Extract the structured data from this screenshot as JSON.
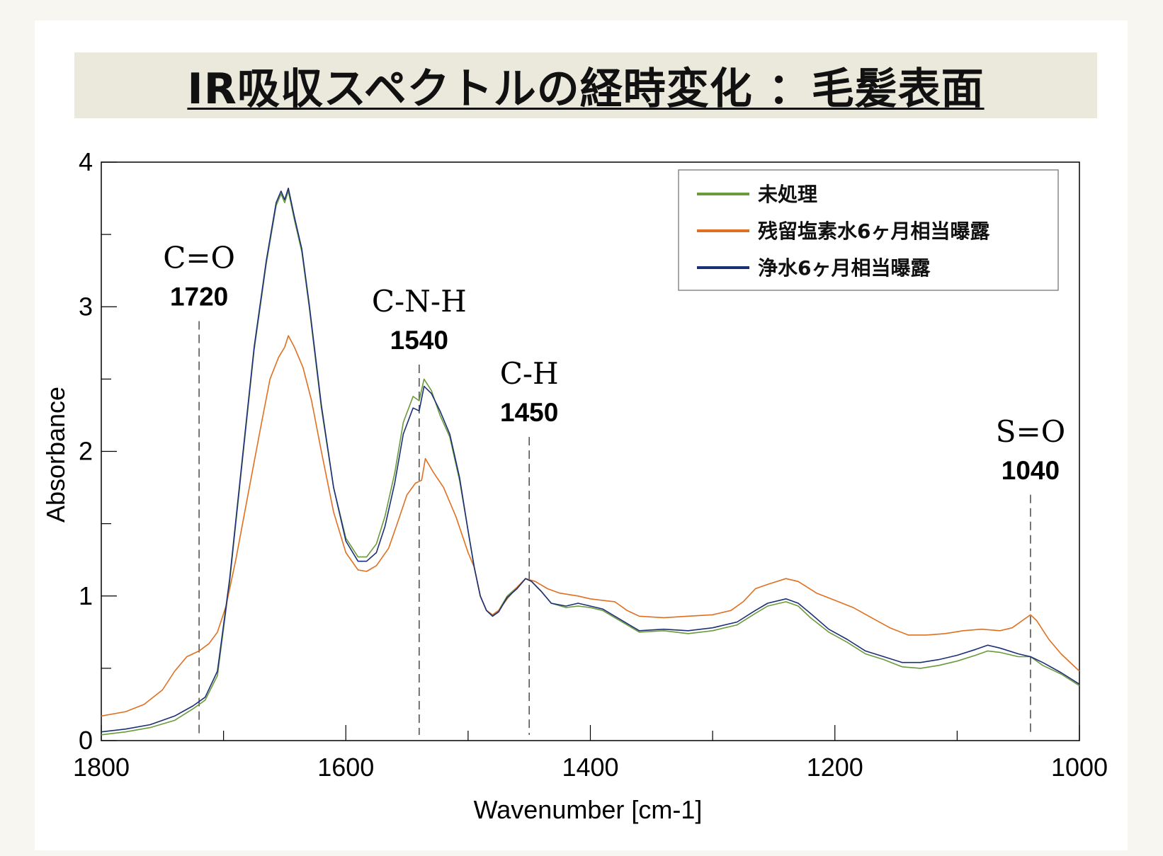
{
  "title": "IR吸収スペクトルの経時変化 ：毛髪表面",
  "chart_data": {
    "type": "line",
    "xlabel": "Wavenumber [cm-1]",
    "ylabel": "Absorbance",
    "xlim": [
      1800,
      1000
    ],
    "ylim": [
      0,
      4
    ],
    "x_ticks": [
      1800,
      1600,
      1400,
      1200,
      1000
    ],
    "y_ticks": [
      0,
      1,
      2,
      3,
      4
    ],
    "legend": {
      "position": "top-right",
      "entries": [
        "未処理",
        "残留塩素水6ヶ月相当曝露",
        "浄水6ヶ月相当曝露"
      ]
    },
    "series": [
      {
        "name": "未処理",
        "color": "#6a9a3a",
        "points": [
          [
            1800,
            0.04
          ],
          [
            1780,
            0.06
          ],
          [
            1760,
            0.09
          ],
          [
            1740,
            0.14
          ],
          [
            1725,
            0.22
          ],
          [
            1715,
            0.28
          ],
          [
            1705,
            0.45
          ],
          [
            1695,
            1.1
          ],
          [
            1685,
            1.9
          ],
          [
            1675,
            2.7
          ],
          [
            1665,
            3.3
          ],
          [
            1657,
            3.7
          ],
          [
            1653,
            3.78
          ],
          [
            1650,
            3.72
          ],
          [
            1647,
            3.8
          ],
          [
            1642,
            3.6
          ],
          [
            1636,
            3.38
          ],
          [
            1630,
            3.0
          ],
          [
            1620,
            2.3
          ],
          [
            1610,
            1.75
          ],
          [
            1600,
            1.4
          ],
          [
            1590,
            1.27
          ],
          [
            1583,
            1.27
          ],
          [
            1575,
            1.36
          ],
          [
            1568,
            1.55
          ],
          [
            1560,
            1.85
          ],
          [
            1553,
            2.2
          ],
          [
            1545,
            2.38
          ],
          [
            1540,
            2.35
          ],
          [
            1536,
            2.5
          ],
          [
            1530,
            2.42
          ],
          [
            1523,
            2.25
          ],
          [
            1515,
            2.1
          ],
          [
            1507,
            1.8
          ],
          [
            1500,
            1.45
          ],
          [
            1495,
            1.2
          ],
          [
            1490,
            1.0
          ],
          [
            1485,
            0.9
          ],
          [
            1480,
            0.86
          ],
          [
            1475,
            0.9
          ],
          [
            1468,
            1.0
          ],
          [
            1460,
            1.06
          ],
          [
            1453,
            1.12
          ],
          [
            1448,
            1.1
          ],
          [
            1440,
            1.03
          ],
          [
            1432,
            0.95
          ],
          [
            1420,
            0.92
          ],
          [
            1410,
            0.93
          ],
          [
            1400,
            0.92
          ],
          [
            1390,
            0.9
          ],
          [
            1380,
            0.85
          ],
          [
            1370,
            0.8
          ],
          [
            1360,
            0.75
          ],
          [
            1340,
            0.76
          ],
          [
            1320,
            0.74
          ],
          [
            1300,
            0.76
          ],
          [
            1280,
            0.8
          ],
          [
            1265,
            0.88
          ],
          [
            1255,
            0.93
          ],
          [
            1240,
            0.96
          ],
          [
            1230,
            0.93
          ],
          [
            1220,
            0.85
          ],
          [
            1205,
            0.75
          ],
          [
            1190,
            0.68
          ],
          [
            1175,
            0.6
          ],
          [
            1160,
            0.56
          ],
          [
            1145,
            0.51
          ],
          [
            1130,
            0.5
          ],
          [
            1115,
            0.52
          ],
          [
            1100,
            0.55
          ],
          [
            1085,
            0.59
          ],
          [
            1075,
            0.62
          ],
          [
            1065,
            0.61
          ],
          [
            1050,
            0.58
          ],
          [
            1040,
            0.58
          ],
          [
            1030,
            0.52
          ],
          [
            1015,
            0.46
          ],
          [
            1000,
            0.38
          ]
        ]
      },
      {
        "name": "残留塩素水6ヶ月相当曝露",
        "color": "#e07020",
        "points": [
          [
            1800,
            0.17
          ],
          [
            1780,
            0.2
          ],
          [
            1765,
            0.25
          ],
          [
            1750,
            0.35
          ],
          [
            1740,
            0.48
          ],
          [
            1730,
            0.58
          ],
          [
            1720,
            0.62
          ],
          [
            1712,
            0.67
          ],
          [
            1705,
            0.75
          ],
          [
            1698,
            0.93
          ],
          [
            1690,
            1.25
          ],
          [
            1680,
            1.7
          ],
          [
            1670,
            2.15
          ],
          [
            1662,
            2.5
          ],
          [
            1655,
            2.65
          ],
          [
            1650,
            2.72
          ],
          [
            1647,
            2.8
          ],
          [
            1642,
            2.72
          ],
          [
            1635,
            2.58
          ],
          [
            1628,
            2.35
          ],
          [
            1620,
            2.0
          ],
          [
            1610,
            1.58
          ],
          [
            1600,
            1.3
          ],
          [
            1590,
            1.18
          ],
          [
            1583,
            1.17
          ],
          [
            1575,
            1.21
          ],
          [
            1565,
            1.33
          ],
          [
            1558,
            1.5
          ],
          [
            1550,
            1.7
          ],
          [
            1543,
            1.78
          ],
          [
            1538,
            1.8
          ],
          [
            1535,
            1.95
          ],
          [
            1528,
            1.85
          ],
          [
            1520,
            1.75
          ],
          [
            1510,
            1.55
          ],
          [
            1500,
            1.3
          ],
          [
            1495,
            1.2
          ],
          [
            1490,
            1.0
          ],
          [
            1485,
            0.9
          ],
          [
            1480,
            0.87
          ],
          [
            1475,
            0.9
          ],
          [
            1468,
            0.98
          ],
          [
            1460,
            1.06
          ],
          [
            1453,
            1.12
          ],
          [
            1445,
            1.1
          ],
          [
            1435,
            1.05
          ],
          [
            1425,
            1.02
          ],
          [
            1410,
            1.0
          ],
          [
            1400,
            0.98
          ],
          [
            1390,
            0.97
          ],
          [
            1380,
            0.96
          ],
          [
            1370,
            0.9
          ],
          [
            1360,
            0.86
          ],
          [
            1340,
            0.85
          ],
          [
            1320,
            0.86
          ],
          [
            1300,
            0.87
          ],
          [
            1285,
            0.9
          ],
          [
            1275,
            0.96
          ],
          [
            1265,
            1.05
          ],
          [
            1255,
            1.08
          ],
          [
            1240,
            1.12
          ],
          [
            1230,
            1.1
          ],
          [
            1215,
            1.02
          ],
          [
            1200,
            0.97
          ],
          [
            1185,
            0.92
          ],
          [
            1170,
            0.85
          ],
          [
            1155,
            0.78
          ],
          [
            1140,
            0.73
          ],
          [
            1125,
            0.73
          ],
          [
            1110,
            0.74
          ],
          [
            1095,
            0.76
          ],
          [
            1080,
            0.77
          ],
          [
            1065,
            0.76
          ],
          [
            1055,
            0.78
          ],
          [
            1045,
            0.84
          ],
          [
            1040,
            0.87
          ],
          [
            1035,
            0.83
          ],
          [
            1025,
            0.7
          ],
          [
            1015,
            0.6
          ],
          [
            1000,
            0.48
          ]
        ]
      },
      {
        "name": "浄水6ヶ月相当曝露",
        "color": "#1b2f78",
        "points": [
          [
            1800,
            0.06
          ],
          [
            1780,
            0.08
          ],
          [
            1760,
            0.11
          ],
          [
            1740,
            0.17
          ],
          [
            1725,
            0.24
          ],
          [
            1715,
            0.3
          ],
          [
            1705,
            0.48
          ],
          [
            1695,
            1.12
          ],
          [
            1685,
            1.92
          ],
          [
            1675,
            2.72
          ],
          [
            1665,
            3.32
          ],
          [
            1657,
            3.72
          ],
          [
            1653,
            3.8
          ],
          [
            1650,
            3.74
          ],
          [
            1647,
            3.82
          ],
          [
            1642,
            3.62
          ],
          [
            1636,
            3.4
          ],
          [
            1630,
            3.02
          ],
          [
            1620,
            2.32
          ],
          [
            1610,
            1.75
          ],
          [
            1600,
            1.38
          ],
          [
            1590,
            1.24
          ],
          [
            1583,
            1.24
          ],
          [
            1575,
            1.3
          ],
          [
            1568,
            1.48
          ],
          [
            1560,
            1.78
          ],
          [
            1553,
            2.12
          ],
          [
            1545,
            2.3
          ],
          [
            1540,
            2.28
          ],
          [
            1536,
            2.45
          ],
          [
            1530,
            2.4
          ],
          [
            1523,
            2.28
          ],
          [
            1515,
            2.12
          ],
          [
            1507,
            1.82
          ],
          [
            1500,
            1.45
          ],
          [
            1495,
            1.2
          ],
          [
            1490,
            1.0
          ],
          [
            1485,
            0.9
          ],
          [
            1480,
            0.86
          ],
          [
            1475,
            0.89
          ],
          [
            1468,
            0.99
          ],
          [
            1460,
            1.05
          ],
          [
            1453,
            1.12
          ],
          [
            1448,
            1.1
          ],
          [
            1440,
            1.03
          ],
          [
            1432,
            0.95
          ],
          [
            1420,
            0.93
          ],
          [
            1410,
            0.95
          ],
          [
            1400,
            0.93
          ],
          [
            1390,
            0.91
          ],
          [
            1380,
            0.86
          ],
          [
            1370,
            0.81
          ],
          [
            1360,
            0.76
          ],
          [
            1340,
            0.77
          ],
          [
            1320,
            0.76
          ],
          [
            1300,
            0.78
          ],
          [
            1280,
            0.82
          ],
          [
            1265,
            0.9
          ],
          [
            1255,
            0.95
          ],
          [
            1240,
            0.98
          ],
          [
            1230,
            0.95
          ],
          [
            1220,
            0.88
          ],
          [
            1205,
            0.77
          ],
          [
            1190,
            0.7
          ],
          [
            1175,
            0.62
          ],
          [
            1160,
            0.58
          ],
          [
            1145,
            0.54
          ],
          [
            1130,
            0.54
          ],
          [
            1115,
            0.56
          ],
          [
            1100,
            0.59
          ],
          [
            1085,
            0.63
          ],
          [
            1075,
            0.66
          ],
          [
            1065,
            0.64
          ],
          [
            1050,
            0.6
          ],
          [
            1040,
            0.58
          ],
          [
            1030,
            0.54
          ],
          [
            1015,
            0.47
          ],
          [
            1000,
            0.39
          ]
        ]
      }
    ],
    "annotations": [
      {
        "name": "C=O",
        "wavenumber": 1720,
        "label": "1720",
        "line_top": 2.9
      },
      {
        "name": "C-N-H",
        "wavenumber": 1540,
        "label": "1540",
        "line_top": 2.6
      },
      {
        "name": "C-H",
        "wavenumber": 1450,
        "label": "1450",
        "line_top": 2.1
      },
      {
        "name": "S=O",
        "wavenumber": 1040,
        "label": "1040",
        "line_top": 1.7
      }
    ]
  }
}
